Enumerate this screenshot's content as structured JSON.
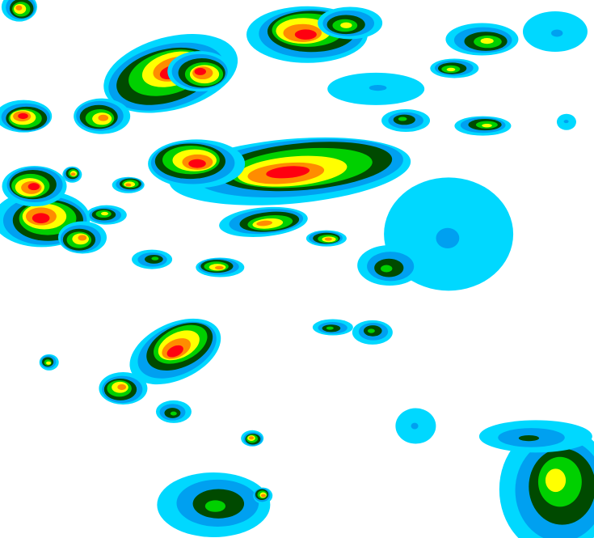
{
  "map": {
    "type": "radar-reflectivity",
    "background": "#ffffff",
    "color_scale": [
      "#00d8ff",
      "#00a0f0",
      "#004a00",
      "#00d000",
      "#ffff00",
      "#ff8c00",
      "#ff0010"
    ]
  }
}
